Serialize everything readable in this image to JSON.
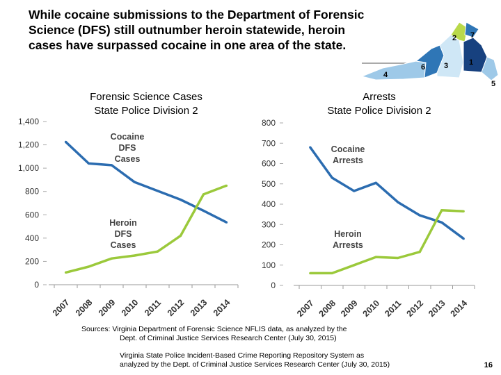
{
  "headline": [
    "While cocaine submissions to the Department of Forensic",
    "Science (DFS) still outnumber heroin statewide, heroin",
    "cases have surpassed cocaine in one area of the state."
  ],
  "map": {
    "division_labels": [
      "1",
      "2",
      "3",
      "4",
      "5",
      "6",
      "7"
    ],
    "colors": {
      "dark": "#17417f",
      "mid": "#2f76b6",
      "light": "#9ec9e8",
      "pale": "#cfe7f6",
      "green": "#b9d94a"
    }
  },
  "chart_data": [
    {
      "type": "line",
      "title": [
        "Forensic Science Cases",
        "State Police Division 2"
      ],
      "x": [
        "2007",
        "2008",
        "2009",
        "2010",
        "2011",
        "2012",
        "2013",
        "2014"
      ],
      "ylim": [
        0,
        1400
      ],
      "yticks": [
        "0",
        "200",
        "400",
        "600",
        "800",
        "1,000",
        "1,200",
        "1,400"
      ],
      "series": [
        {
          "name": [
            "Cocaine",
            "DFS",
            "Cases"
          ],
          "color": "#2b6cb0",
          "values": [
            1225,
            1040,
            1025,
            880,
            805,
            730,
            635,
            535
          ]
        },
        {
          "name": [
            "Heroin",
            "DFS",
            "Cases"
          ],
          "color": "#9bc93b",
          "values": [
            105,
            155,
            225,
            250,
            285,
            420,
            775,
            850
          ]
        }
      ]
    },
    {
      "type": "line",
      "title": [
        "Arrests",
        "State Police Division 2"
      ],
      "x": [
        "2007",
        "2008",
        "2009",
        "2010",
        "2011",
        "2012",
        "2013",
        "2014"
      ],
      "ylim": [
        0,
        800
      ],
      "yticks": [
        "0",
        "100",
        "200",
        "300",
        "400",
        "500",
        "600",
        "700",
        "800"
      ],
      "series": [
        {
          "name": [
            "Cocaine",
            "Arrests"
          ],
          "color": "#2b6cb0",
          "values": [
            680,
            530,
            465,
            505,
            410,
            345,
            310,
            230
          ]
        },
        {
          "name": [
            "Heroin",
            "Arrests"
          ],
          "color": "#9bc93b",
          "values": [
            60,
            60,
            100,
            140,
            135,
            165,
            370,
            365
          ]
        }
      ]
    }
  ],
  "sources": [
    "Sources:  Virginia Department of Forensic Science  NFLIS data, as analyzed by the",
    "Dept. of Criminal Justice Services Research Center (July 30, 2015)",
    "Virginia State Police Incident-Based Crime Reporting Repository System as",
    "analyzed by the Dept. of Criminal Justice Services Research Center (July 30, 2015)"
  ],
  "page_number": "16"
}
